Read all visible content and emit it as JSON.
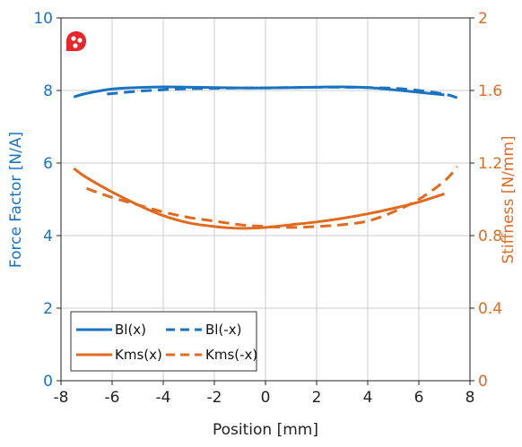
{
  "chart_data": {
    "type": "line",
    "xlabel": "Position [mm]",
    "ylabel_left": "Force Factor [N/A]",
    "ylabel_right": "Stiffness [N/mm]",
    "xlim": [
      -8,
      8
    ],
    "ylim_left": [
      0,
      10
    ],
    "ylim_right": [
      0,
      2
    ],
    "x_ticks": [
      "-8",
      "-6",
      "-4",
      "-2",
      "0",
      "2",
      "4",
      "6",
      "8"
    ],
    "y_left_ticks": [
      "0",
      "2",
      "4",
      "6",
      "8",
      "10"
    ],
    "y_right_ticks": [
      "0",
      "0.4",
      "0.8",
      "1.2",
      "1.6",
      "2"
    ],
    "grid": true,
    "legend_position": "bottom-left",
    "colors": {
      "bl": "#1a73c0",
      "kms": "#e06a1f",
      "grid": "#cccccc"
    },
    "series": [
      {
        "name": "Bl(x)",
        "axis": "left",
        "color": "#1a73c0",
        "dash": "solid",
        "x": [
          -7.5,
          -7,
          -6,
          -5,
          -4,
          -3,
          -2,
          -1,
          0,
          1,
          2,
          3,
          4,
          5,
          6,
          7
        ],
        "y": [
          7.82,
          7.92,
          8.04,
          8.08,
          8.1,
          8.09,
          8.08,
          8.07,
          8.07,
          8.08,
          8.09,
          8.1,
          8.08,
          8.02,
          7.95,
          7.88
        ]
      },
      {
        "name": "Bl(-x)",
        "axis": "left",
        "color": "#1a73c0",
        "dash": "dashed",
        "x": [
          -6.2,
          -5,
          -4,
          -3,
          -2,
          -1,
          0,
          1,
          2,
          3,
          4,
          5,
          6,
          7,
          7.5
        ],
        "y": [
          7.9,
          7.98,
          8.02,
          8.05,
          8.06,
          8.07,
          8.07,
          8.08,
          8.09,
          8.09,
          8.08,
          8.06,
          8.0,
          7.9,
          7.8
        ]
      },
      {
        "name": "Kms(x)",
        "axis": "right",
        "color": "#e06a1f",
        "dash": "solid",
        "x": [
          -7.5,
          -7,
          -6,
          -5,
          -4,
          -3,
          -2,
          -1,
          0,
          1,
          2,
          3,
          4,
          5,
          6,
          7
        ],
        "y": [
          1.17,
          1.12,
          1.04,
          0.97,
          0.91,
          0.87,
          0.85,
          0.84,
          0.845,
          0.86,
          0.875,
          0.895,
          0.92,
          0.95,
          0.985,
          1.03
        ]
      },
      {
        "name": "Kms(-x)",
        "axis": "right",
        "color": "#e06a1f",
        "dash": "dashed",
        "x": [
          -7,
          -6,
          -5,
          -4,
          -3,
          -2,
          -1,
          0,
          1,
          2,
          3,
          4,
          5,
          6,
          7,
          7.5
        ],
        "y": [
          1.06,
          1.01,
          0.97,
          0.93,
          0.9,
          0.88,
          0.86,
          0.85,
          0.845,
          0.85,
          0.86,
          0.88,
          0.93,
          1.0,
          1.1,
          1.18
        ]
      }
    ]
  }
}
